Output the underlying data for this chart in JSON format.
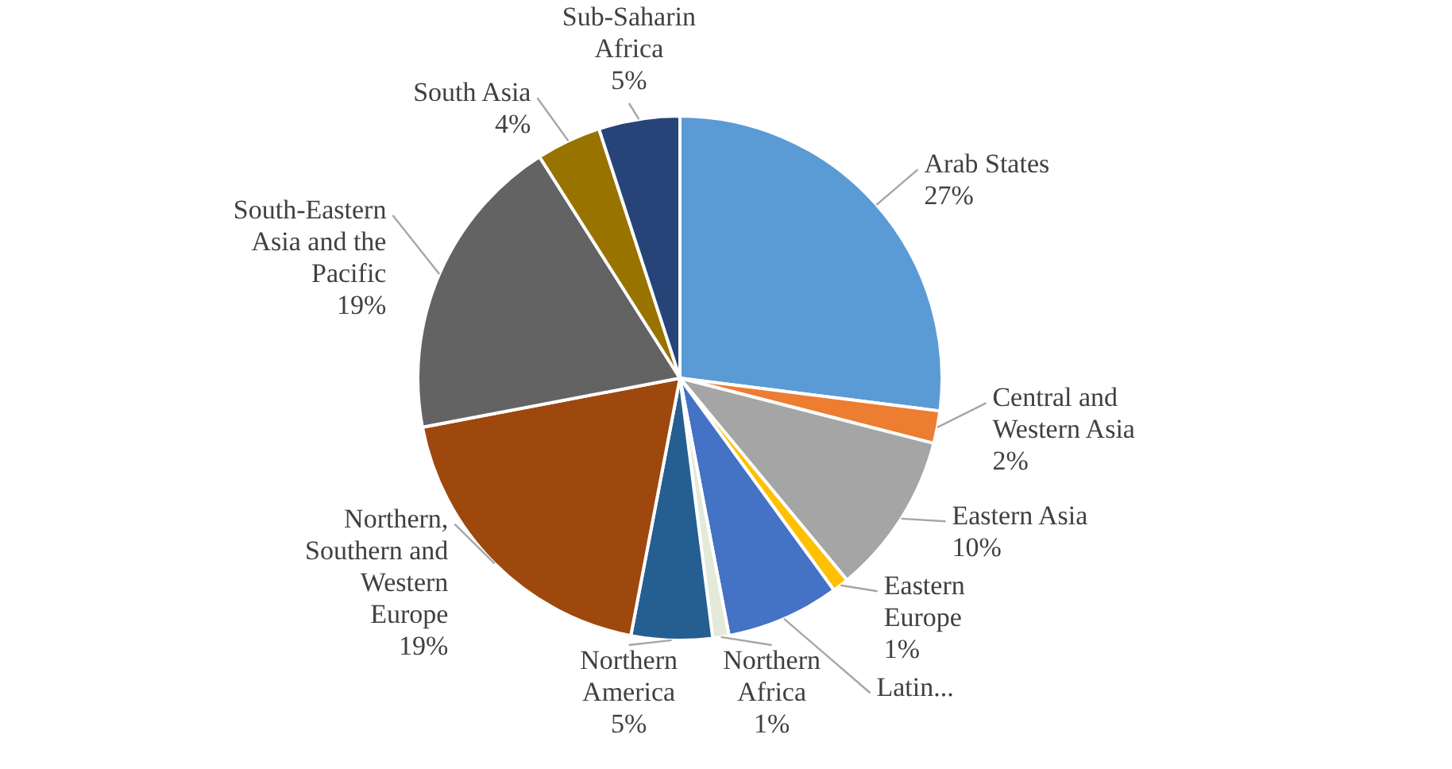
{
  "chart_data": {
    "type": "pie",
    "categories": [
      "Arab States",
      "Central and Western Asia",
      "Eastern Asia",
      "Eastern Europe",
      "Latin...",
      "Northern Africa",
      "Northern America",
      "Northern, Southern and Western Europe",
      "South-Eastern Asia and the Pacific",
      "South Asia",
      "Sub-Saharin Africa"
    ],
    "values": [
      27,
      2,
      10,
      1,
      7,
      1,
      5,
      19,
      19,
      4,
      5
    ],
    "value_labels": [
      "27%",
      "2%",
      "10%",
      "1%",
      null,
      "1%",
      "5%",
      "19%",
      "19%",
      "4%",
      "5%"
    ],
    "colors": [
      "#5b9bd5",
      "#ed7d31",
      "#a5a5a5",
      "#ffc000",
      "#4472c4",
      "#e4ead9",
      "#255e91",
      "#9e480e",
      "#636363",
      "#997300",
      "#264478"
    ]
  }
}
